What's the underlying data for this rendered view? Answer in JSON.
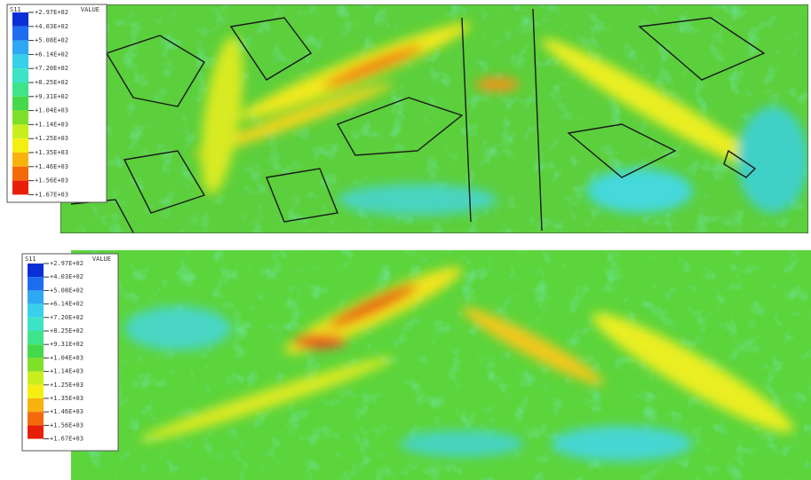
{
  "legend_colors": [
    "#0a2fd6",
    "#1e6cf0",
    "#2ea8f2",
    "#38d0ea",
    "#3ce3c4",
    "#3fe38a",
    "#44d84a",
    "#7fe02a",
    "#c8ee1e",
    "#f4ee12",
    "#f8b20e",
    "#f46a0a",
    "#e81e08"
  ],
  "panels": [
    {
      "legend": {
        "title": "S11",
        "header": "VALUE",
        "labels": [
          "+2.97E+02",
          "+4.03E+02",
          "+5.08E+02",
          "+6.14E+02",
          "+7.20E+02",
          "+8.25E+02",
          "+9.31E+02",
          "+1.04E+03",
          "+1.14E+03",
          "+1.25E+03",
          "+1.35E+03",
          "+1.46E+03",
          "+1.56E+03",
          "+1.67E+03"
        ]
      }
    },
    {
      "legend": {
        "title": "S11",
        "header": "VALUE",
        "labels": [
          "+2.97E+02",
          "+4.03E+02",
          "+5.08E+02",
          "+6.14E+02",
          "+7.20E+02",
          "+8.25E+02",
          "+9.31E+02",
          "+1.04E+03",
          "+1.14E+03",
          "+1.25E+03",
          "+1.35E+03",
          "+1.46E+03",
          "+1.56E+03",
          "+1.67E+03"
        ]
      }
    }
  ]
}
